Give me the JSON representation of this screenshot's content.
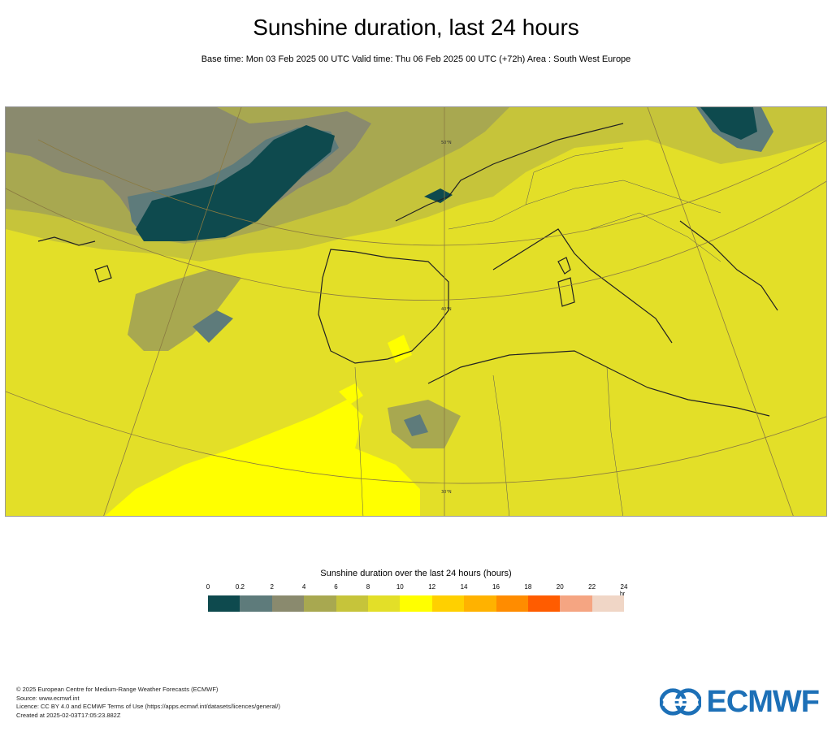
{
  "title": "Sunshine duration, last 24 hours",
  "subtitle": "Base time: Mon 03 Feb 2025 00 UTC Valid time: Thu 06 Feb 2025 00 UTC (+72h) Area : South West Europe",
  "map": {
    "lat_labels": [
      "50°N",
      "40°N",
      "30°N"
    ]
  },
  "legend": {
    "title": "Sunshine duration over the last 24 hours (hours)",
    "unit": "hr",
    "ticks": [
      "0",
      "0.2",
      "2",
      "4",
      "6",
      "8",
      "10",
      "12",
      "14",
      "16",
      "18",
      "20",
      "22",
      "24"
    ],
    "colors": [
      "#0e4a4e",
      "#5e7b7b",
      "#8a8a6e",
      "#a8a850",
      "#c6c43a",
      "#e3df28",
      "#ffff00",
      "#ffd000",
      "#ffb200",
      "#ff8c00",
      "#ff5c00",
      "#f5a582",
      "#f0d6c6"
    ]
  },
  "footer": {
    "line1": "© 2025 European Centre for Medium-Range Weather Forecasts (ECMWF)",
    "line2": "Source: www.ecmwf.int",
    "line3": "Licence: CC BY 4.0 and ECMWF Terms of Use (https://apps.ecmwf.int/datasets/licences/general/)",
    "line4": "Created at 2025-02-03T17:05:23.882Z"
  },
  "logo": {
    "text": "ECMWF",
    "color": "#1d70b7"
  }
}
